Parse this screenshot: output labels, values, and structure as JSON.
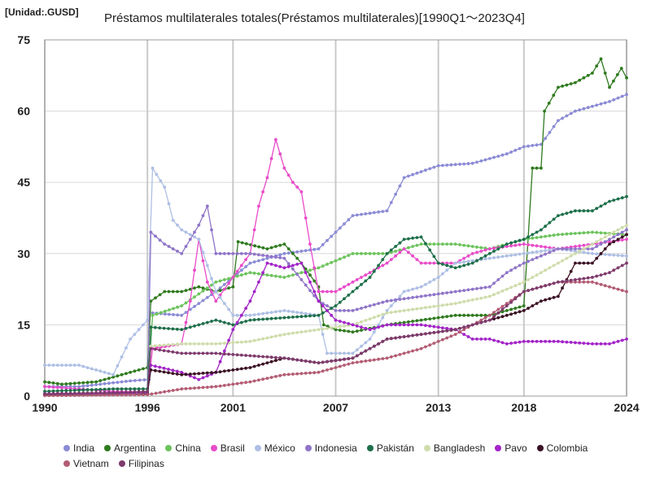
{
  "chart_data": {
    "type": "line",
    "title": "Préstamos multilaterales totales(Préstamos multilaterales)[1990Q1～2023Q4]",
    "unit_label": "[Unidad:.GUSD]",
    "xlabel": "",
    "ylabel": "",
    "xlim": [
      1990,
      2024
    ],
    "ylim": [
      0,
      75
    ],
    "x_ticks": [
      "1990",
      "1996",
      "2001",
      "2007",
      "2013",
      "2018",
      "2024"
    ],
    "y_ticks": [
      "0",
      "15",
      "30",
      "45",
      "60",
      "75"
    ],
    "grid": true,
    "legend_position": "bottom",
    "series": [
      {
        "name": "India",
        "color": "#8b8bd6",
        "points": [
          [
            1990,
            2
          ],
          [
            1992,
            2
          ],
          [
            1995,
            3.2
          ],
          [
            1996.1,
            3.5
          ],
          [
            1996.3,
            17.5
          ],
          [
            1998,
            17
          ],
          [
            2000,
            22
          ],
          [
            2002,
            28
          ],
          [
            2004,
            30
          ],
          [
            2006,
            31
          ],
          [
            2008,
            38
          ],
          [
            2010,
            39
          ],
          [
            2011,
            46
          ],
          [
            2013,
            48.5
          ],
          [
            2015,
            49
          ],
          [
            2017,
            51
          ],
          [
            2018,
            52.5
          ],
          [
            2019,
            53
          ],
          [
            2020,
            58
          ],
          [
            2021,
            60
          ],
          [
            2022,
            61
          ],
          [
            2023,
            62
          ],
          [
            2024,
            63.5
          ]
        ]
      },
      {
        "name": "Argentina",
        "color": "#2f7a1e",
        "points": [
          [
            1990,
            3
          ],
          [
            1991,
            2.5
          ],
          [
            1993,
            3
          ],
          [
            1995,
            5
          ],
          [
            1996,
            6
          ],
          [
            1996.2,
            20
          ],
          [
            1997,
            22
          ],
          [
            1998,
            22
          ],
          [
            1999,
            23
          ],
          [
            2000,
            22
          ],
          [
            2001,
            23
          ],
          [
            2001.3,
            32.5
          ],
          [
            2003,
            31
          ],
          [
            2004,
            32
          ],
          [
            2005,
            28
          ],
          [
            2006,
            23
          ],
          [
            2006.3,
            15
          ],
          [
            2007,
            14
          ],
          [
            2008,
            13.5
          ],
          [
            2010,
            15
          ],
          [
            2012,
            16
          ],
          [
            2014,
            17
          ],
          [
            2016,
            17
          ],
          [
            2017,
            18
          ],
          [
            2018,
            19
          ],
          [
            2018.5,
            48
          ],
          [
            2019,
            48
          ],
          [
            2019.2,
            60
          ],
          [
            2020,
            65
          ],
          [
            2021,
            66
          ],
          [
            2022,
            68
          ],
          [
            2022.5,
            71
          ],
          [
            2023,
            65
          ],
          [
            2023.7,
            69
          ],
          [
            2024,
            67
          ]
        ]
      },
      {
        "name": "China",
        "color": "#6cc35c",
        "points": [
          [
            1990,
            0.5
          ],
          [
            1994,
            0.5
          ],
          [
            1996,
            1
          ],
          [
            1996.3,
            17
          ],
          [
            1998,
            19
          ],
          [
            2000,
            24
          ],
          [
            2002,
            26
          ],
          [
            2004,
            25
          ],
          [
            2006,
            27
          ],
          [
            2008,
            30
          ],
          [
            2010,
            30
          ],
          [
            2012,
            32
          ],
          [
            2014,
            32
          ],
          [
            2016,
            31
          ],
          [
            2018,
            33
          ],
          [
            2020,
            34
          ],
          [
            2022,
            34.5
          ],
          [
            2024,
            34
          ]
        ]
      },
      {
        "name": "Brasil",
        "color": "#e94bc9",
        "points": [
          [
            1990,
            2
          ],
          [
            1992,
            1.5
          ],
          [
            1994,
            1
          ],
          [
            1996,
            0.8
          ],
          [
            1996.3,
            10
          ],
          [
            1998,
            11
          ],
          [
            1998.5,
            20
          ],
          [
            1999,
            33
          ],
          [
            1999.5,
            24
          ],
          [
            2000,
            20
          ],
          [
            2001,
            25
          ],
          [
            2002,
            30
          ],
          [
            2002.5,
            40
          ],
          [
            2003,
            46
          ],
          [
            2003.5,
            54
          ],
          [
            2004,
            48
          ],
          [
            2004.5,
            45
          ],
          [
            2005,
            43
          ],
          [
            2005.5,
            32
          ],
          [
            2006,
            22
          ],
          [
            2007,
            22
          ],
          [
            2008,
            24
          ],
          [
            2009,
            26
          ],
          [
            2010,
            28
          ],
          [
            2011,
            31
          ],
          [
            2012,
            28
          ],
          [
            2013,
            28
          ],
          [
            2014,
            28
          ],
          [
            2015,
            30
          ],
          [
            2016,
            31
          ],
          [
            2018,
            32
          ],
          [
            2020,
            31
          ],
          [
            2022,
            32
          ],
          [
            2024,
            33
          ]
        ]
      },
      {
        "name": "México",
        "color": "#aebfe5",
        "points": [
          [
            1990,
            6.5
          ],
          [
            1992,
            6.5
          ],
          [
            1994,
            4.5
          ],
          [
            1995,
            12
          ],
          [
            1996,
            16
          ],
          [
            1996.3,
            48
          ],
          [
            1997,
            44
          ],
          [
            1997.5,
            37
          ],
          [
            1998,
            35
          ],
          [
            1999,
            33
          ],
          [
            2000,
            22
          ],
          [
            2001,
            17
          ],
          [
            2002,
            17
          ],
          [
            2004,
            18
          ],
          [
            2006,
            17
          ],
          [
            2006.5,
            9
          ],
          [
            2008,
            9
          ],
          [
            2009,
            12
          ],
          [
            2010,
            18
          ],
          [
            2011,
            22
          ],
          [
            2012,
            23
          ],
          [
            2013,
            25
          ],
          [
            2014,
            28
          ],
          [
            2016,
            29
          ],
          [
            2018,
            30
          ],
          [
            2020,
            31
          ],
          [
            2022,
            30
          ],
          [
            2024,
            29.5
          ]
        ]
      },
      {
        "name": "Indonesia",
        "color": "#8f75c8",
        "points": [
          [
            1990,
            0.3
          ],
          [
            1995,
            0.3
          ],
          [
            1996,
            0.5
          ],
          [
            1996.2,
            34.5
          ],
          [
            1997,
            32
          ],
          [
            1998,
            30
          ],
          [
            1999,
            36
          ],
          [
            1999.5,
            40
          ],
          [
            2000,
            30
          ],
          [
            2002,
            30
          ],
          [
            2004,
            29
          ],
          [
            2006,
            20
          ],
          [
            2007,
            18
          ],
          [
            2008,
            18
          ],
          [
            2010,
            20
          ],
          [
            2012,
            21
          ],
          [
            2014,
            22
          ],
          [
            2016,
            23
          ],
          [
            2017,
            26
          ],
          [
            2018,
            28
          ],
          [
            2020,
            31
          ],
          [
            2022,
            31
          ],
          [
            2024,
            35
          ]
        ]
      },
      {
        "name": "Pakistán",
        "color": "#1e6f4a",
        "points": [
          [
            1990,
            1
          ],
          [
            1994,
            1.5
          ],
          [
            1996,
            1.5
          ],
          [
            1996.2,
            14.5
          ],
          [
            1998,
            14
          ],
          [
            1999,
            15
          ],
          [
            2000,
            16
          ],
          [
            2001,
            15
          ],
          [
            2002,
            16
          ],
          [
            2004,
            16.5
          ],
          [
            2006,
            17
          ],
          [
            2007,
            19
          ],
          [
            2008,
            22
          ],
          [
            2009,
            25
          ],
          [
            2010,
            30
          ],
          [
            2011,
            33
          ],
          [
            2012,
            33.5
          ],
          [
            2013,
            28
          ],
          [
            2014,
            27
          ],
          [
            2015,
            28
          ],
          [
            2016,
            30
          ],
          [
            2017,
            32
          ],
          [
            2018,
            33
          ],
          [
            2019,
            35
          ],
          [
            2020,
            38
          ],
          [
            2021,
            39
          ],
          [
            2022,
            39
          ],
          [
            2023,
            41
          ],
          [
            2024,
            42
          ]
        ]
      },
      {
        "name": "Bangladesh",
        "color": "#cfdcab",
        "points": [
          [
            1990,
            0.2
          ],
          [
            1995,
            0.3
          ],
          [
            1996,
            0.4
          ],
          [
            1996.2,
            10.5
          ],
          [
            1998,
            11
          ],
          [
            2000,
            11
          ],
          [
            2002,
            11.5
          ],
          [
            2004,
            13
          ],
          [
            2006,
            14
          ],
          [
            2008,
            15
          ],
          [
            2010,
            17.5
          ],
          [
            2012,
            18.5
          ],
          [
            2014,
            19.5
          ],
          [
            2016,
            21
          ],
          [
            2018,
            24
          ],
          [
            2020,
            28
          ],
          [
            2022,
            32
          ],
          [
            2024,
            36
          ]
        ]
      },
      {
        "name": "Pavo",
        "color": "#a324c8",
        "points": [
          [
            1990,
            0.5
          ],
          [
            1995,
            0.6
          ],
          [
            1996,
            0.8
          ],
          [
            1996.2,
            6.5
          ],
          [
            1998,
            5
          ],
          [
            1999,
            3.5
          ],
          [
            2000,
            5
          ],
          [
            2001,
            14
          ],
          [
            2002,
            20
          ],
          [
            2003,
            28
          ],
          [
            2004,
            27
          ],
          [
            2005,
            28
          ],
          [
            2006,
            20
          ],
          [
            2007,
            16
          ],
          [
            2008,
            15
          ],
          [
            2009,
            14
          ],
          [
            2010,
            15
          ],
          [
            2012,
            15
          ],
          [
            2014,
            14
          ],
          [
            2015,
            12
          ],
          [
            2016,
            12
          ],
          [
            2017,
            11
          ],
          [
            2018,
            11.5
          ],
          [
            2020,
            11.5
          ],
          [
            2022,
            11
          ],
          [
            2023,
            11
          ],
          [
            2024,
            12
          ]
        ]
      },
      {
        "name": "Colombia",
        "color": "#3b1224",
        "points": [
          [
            1990,
            0.2
          ],
          [
            1995,
            0.3
          ],
          [
            1996,
            0.5
          ],
          [
            1996.2,
            5.5
          ],
          [
            1998,
            4.5
          ],
          [
            2000,
            5
          ],
          [
            2002,
            6
          ],
          [
            2004,
            8
          ],
          [
            2006,
            7
          ],
          [
            2008,
            8
          ],
          [
            2010,
            12
          ],
          [
            2012,
            13
          ],
          [
            2014,
            14
          ],
          [
            2016,
            16
          ],
          [
            2018,
            18
          ],
          [
            2019,
            20
          ],
          [
            2020,
            21
          ],
          [
            2021,
            28
          ],
          [
            2022,
            28
          ],
          [
            2023,
            32
          ],
          [
            2024,
            34
          ]
        ]
      },
      {
        "name": "Vietnam",
        "color": "#b35c74",
        "points": [
          [
            1990,
            0.1
          ],
          [
            1996,
            0.3
          ],
          [
            1998,
            1.5
          ],
          [
            2000,
            2
          ],
          [
            2002,
            3
          ],
          [
            2004,
            4.5
          ],
          [
            2006,
            5
          ],
          [
            2008,
            7
          ],
          [
            2010,
            8
          ],
          [
            2012,
            10
          ],
          [
            2014,
            13
          ],
          [
            2016,
            17
          ],
          [
            2018,
            22
          ],
          [
            2020,
            24
          ],
          [
            2022,
            24
          ],
          [
            2024,
            22
          ]
        ]
      },
      {
        "name": "Filipinas",
        "color": "#7e3a6c",
        "points": [
          [
            1990,
            0.5
          ],
          [
            1995,
            0.8
          ],
          [
            1996,
            1
          ],
          [
            1996.2,
            10
          ],
          [
            1998,
            9
          ],
          [
            2000,
            9
          ],
          [
            2002,
            8.5
          ],
          [
            2004,
            8
          ],
          [
            2006,
            7
          ],
          [
            2008,
            8
          ],
          [
            2010,
            12
          ],
          [
            2012,
            13
          ],
          [
            2014,
            14
          ],
          [
            2016,
            16
          ],
          [
            2018,
            22
          ],
          [
            2020,
            24
          ],
          [
            2022,
            25
          ],
          [
            2023,
            26
          ],
          [
            2024,
            28
          ]
        ]
      }
    ]
  }
}
